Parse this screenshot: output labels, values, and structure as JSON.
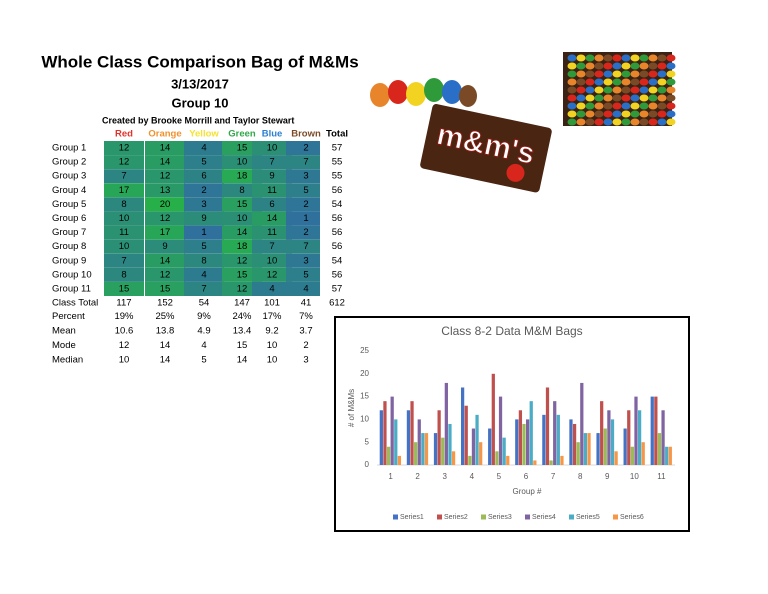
{
  "header": {
    "title": "Whole Class Comparison Bag of M&Ms",
    "date": "3/13/2017",
    "group": "Group 10",
    "credit": "Created by Brooke Morrill and Taylor Stewart"
  },
  "table": {
    "columns": [
      "Red",
      "Orange",
      "Yellow",
      "Green",
      "Blue",
      "Brown",
      "Total"
    ],
    "rows": [
      {
        "label": "Group 1",
        "cells": [
          12,
          14,
          4,
          15,
          10,
          2,
          57
        ]
      },
      {
        "label": "Group 2",
        "cells": [
          12,
          14,
          5,
          10,
          7,
          7,
          55
        ]
      },
      {
        "label": "Group 3",
        "cells": [
          7,
          12,
          6,
          18,
          9,
          3,
          55
        ]
      },
      {
        "label": "Group 4",
        "cells": [
          17,
          13,
          2,
          8,
          11,
          5,
          56
        ]
      },
      {
        "label": "Group 5",
        "cells": [
          8,
          20,
          3,
          15,
          6,
          2,
          54
        ]
      },
      {
        "label": "Group 6",
        "cells": [
          10,
          12,
          9,
          10,
          14,
          1,
          56
        ]
      },
      {
        "label": "Group 7",
        "cells": [
          11,
          17,
          1,
          14,
          11,
          2,
          56
        ]
      },
      {
        "label": "Group 8",
        "cells": [
          10,
          9,
          5,
          18,
          7,
          7,
          56
        ]
      },
      {
        "label": "Group 9",
        "cells": [
          7,
          14,
          8,
          12,
          10,
          3,
          54
        ]
      },
      {
        "label": "Group 10",
        "cells": [
          8,
          12,
          4,
          15,
          12,
          5,
          56
        ]
      },
      {
        "label": "Group 11",
        "cells": [
          15,
          15,
          7,
          12,
          4,
          4,
          57
        ]
      },
      {
        "label": "Class Total",
        "cells": [
          117,
          152,
          54,
          147,
          101,
          41,
          612
        ]
      },
      {
        "label": "Percent",
        "cells": [
          "19%",
          "25%",
          "9%",
          "24%",
          "17%",
          "7%"
        ]
      },
      {
        "label": "Mean",
        "cells": [
          10.6,
          13.8,
          4.9,
          13.4,
          9.2,
          3.7
        ]
      },
      {
        "label": "Mode",
        "cells": [
          12,
          14,
          4,
          15,
          10,
          2
        ]
      },
      {
        "label": "Median",
        "cells": [
          10,
          14,
          5,
          14,
          10,
          3
        ]
      }
    ]
  },
  "chart_data": {
    "type": "bar",
    "title": "Class 8-2 Data M&M Bags",
    "x_label": "Group #",
    "y_label": "# of M&Ms",
    "categories": [
      "1",
      "2",
      "3",
      "4",
      "5",
      "6",
      "7",
      "8",
      "9",
      "10",
      "11"
    ],
    "series": [
      {
        "name": "Series1",
        "color": "#4472c4",
        "values": [
          12,
          12,
          7,
          17,
          8,
          10,
          11,
          10,
          7,
          8,
          15
        ]
      },
      {
        "name": "Series2",
        "color": "#c0504d",
        "values": [
          14,
          14,
          12,
          13,
          20,
          12,
          17,
          9,
          14,
          12,
          15
        ]
      },
      {
        "name": "Series3",
        "color": "#9bbb59",
        "values": [
          4,
          5,
          6,
          2,
          3,
          9,
          1,
          5,
          8,
          4,
          7
        ]
      },
      {
        "name": "Series4",
        "color": "#8064a2",
        "values": [
          15,
          10,
          18,
          8,
          15,
          10,
          14,
          18,
          12,
          15,
          12
        ]
      },
      {
        "name": "Series5",
        "color": "#4bacc6",
        "values": [
          10,
          7,
          9,
          11,
          6,
          14,
          11,
          7,
          10,
          12,
          4
        ]
      },
      {
        "name": "Series6",
        "color": "#f79646",
        "values": [
          2,
          7,
          3,
          5,
          2,
          1,
          2,
          7,
          3,
          5,
          4
        ]
      }
    ],
    "ylim": [
      0,
      25
    ],
    "yticks": [
      0,
      5,
      10,
      15,
      20,
      25
    ],
    "grid": false,
    "legend": "bottom"
  }
}
